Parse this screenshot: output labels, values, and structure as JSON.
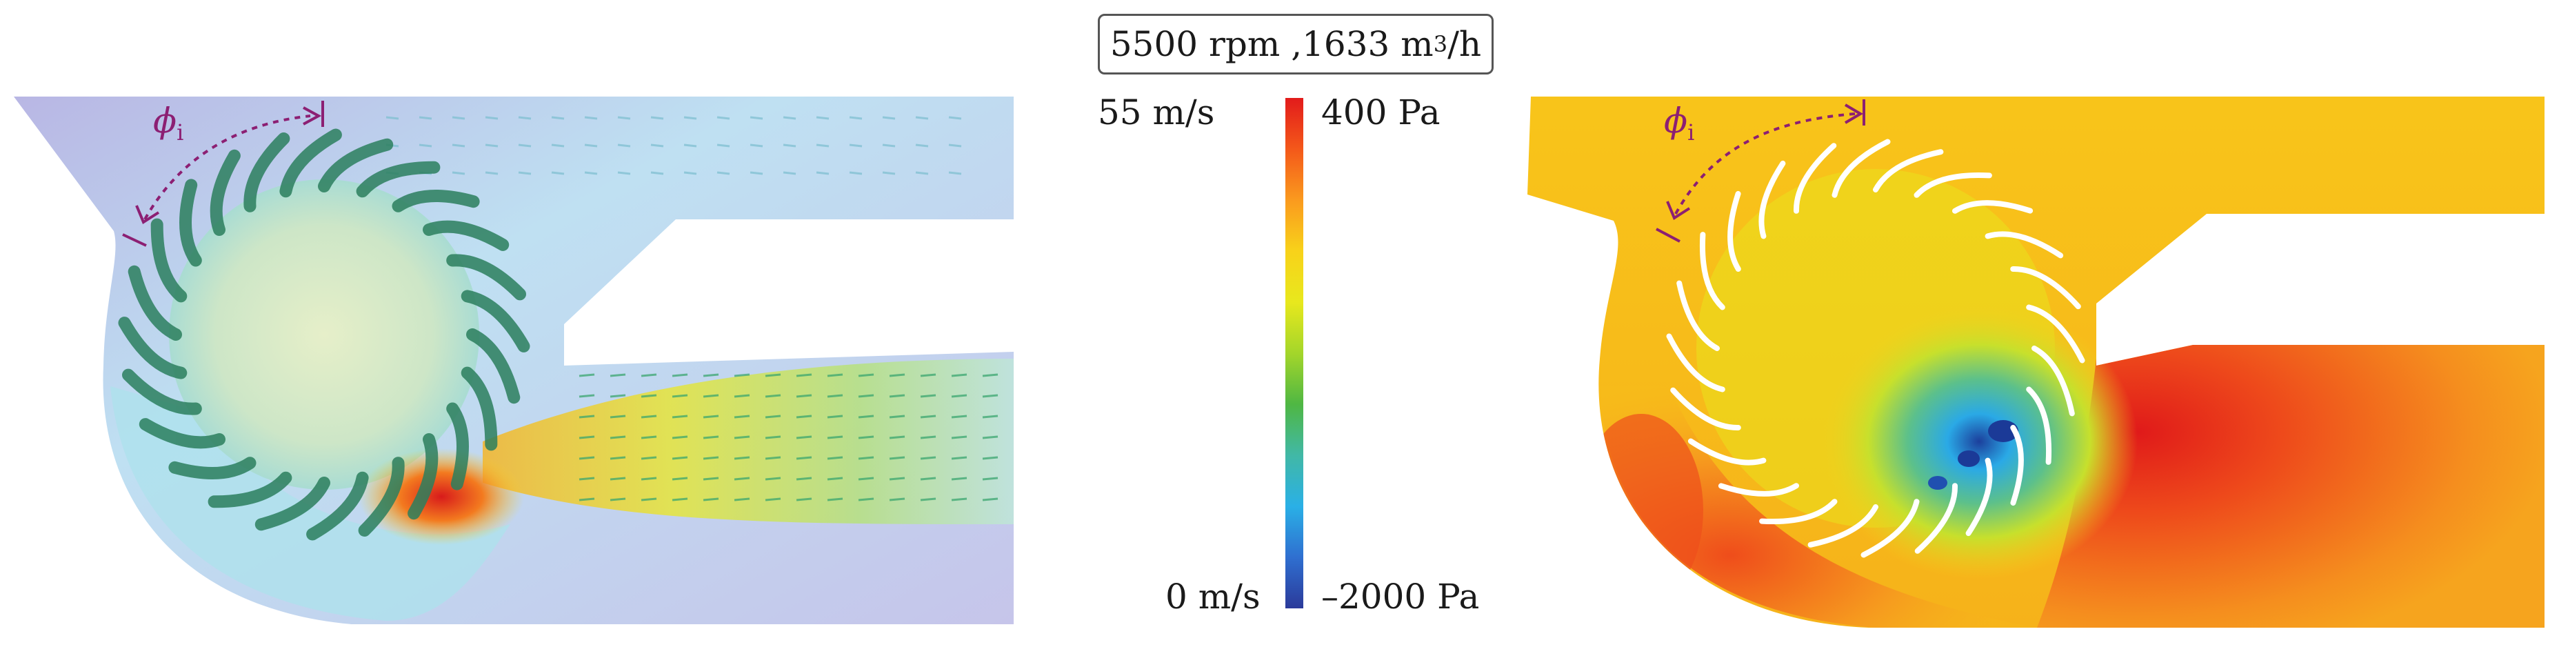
{
  "operating_point": {
    "speed": "5500 rpm",
    "flow_number": "1633",
    "flow_unit_base": "m",
    "flow_unit_exp": "3",
    "flow_unit_tail": "/h"
  },
  "colorbar": {
    "velocity_max": "55 m/s",
    "velocity_min": "0 m/s",
    "pressure_max": "400 Pa",
    "pressure_min": "–2000 Pa",
    "colors": [
      "#e21b1b",
      "#f4581a",
      "#fa9a1e",
      "#f8d21a",
      "#e8e81d",
      "#a4d62a",
      "#4fb743",
      "#41b8a6",
      "#2ab0e6",
      "#2f6fd0",
      "#2b3a9a"
    ]
  },
  "left_panel": {
    "angle_symbol": "ϕ",
    "angle_subscript": "i",
    "blade_count": 24
  },
  "right_panel": {
    "angle_symbol": "ϕ",
    "angle_subscript": "i",
    "blade_count": 24
  },
  "accent_color": "#8c1f73"
}
